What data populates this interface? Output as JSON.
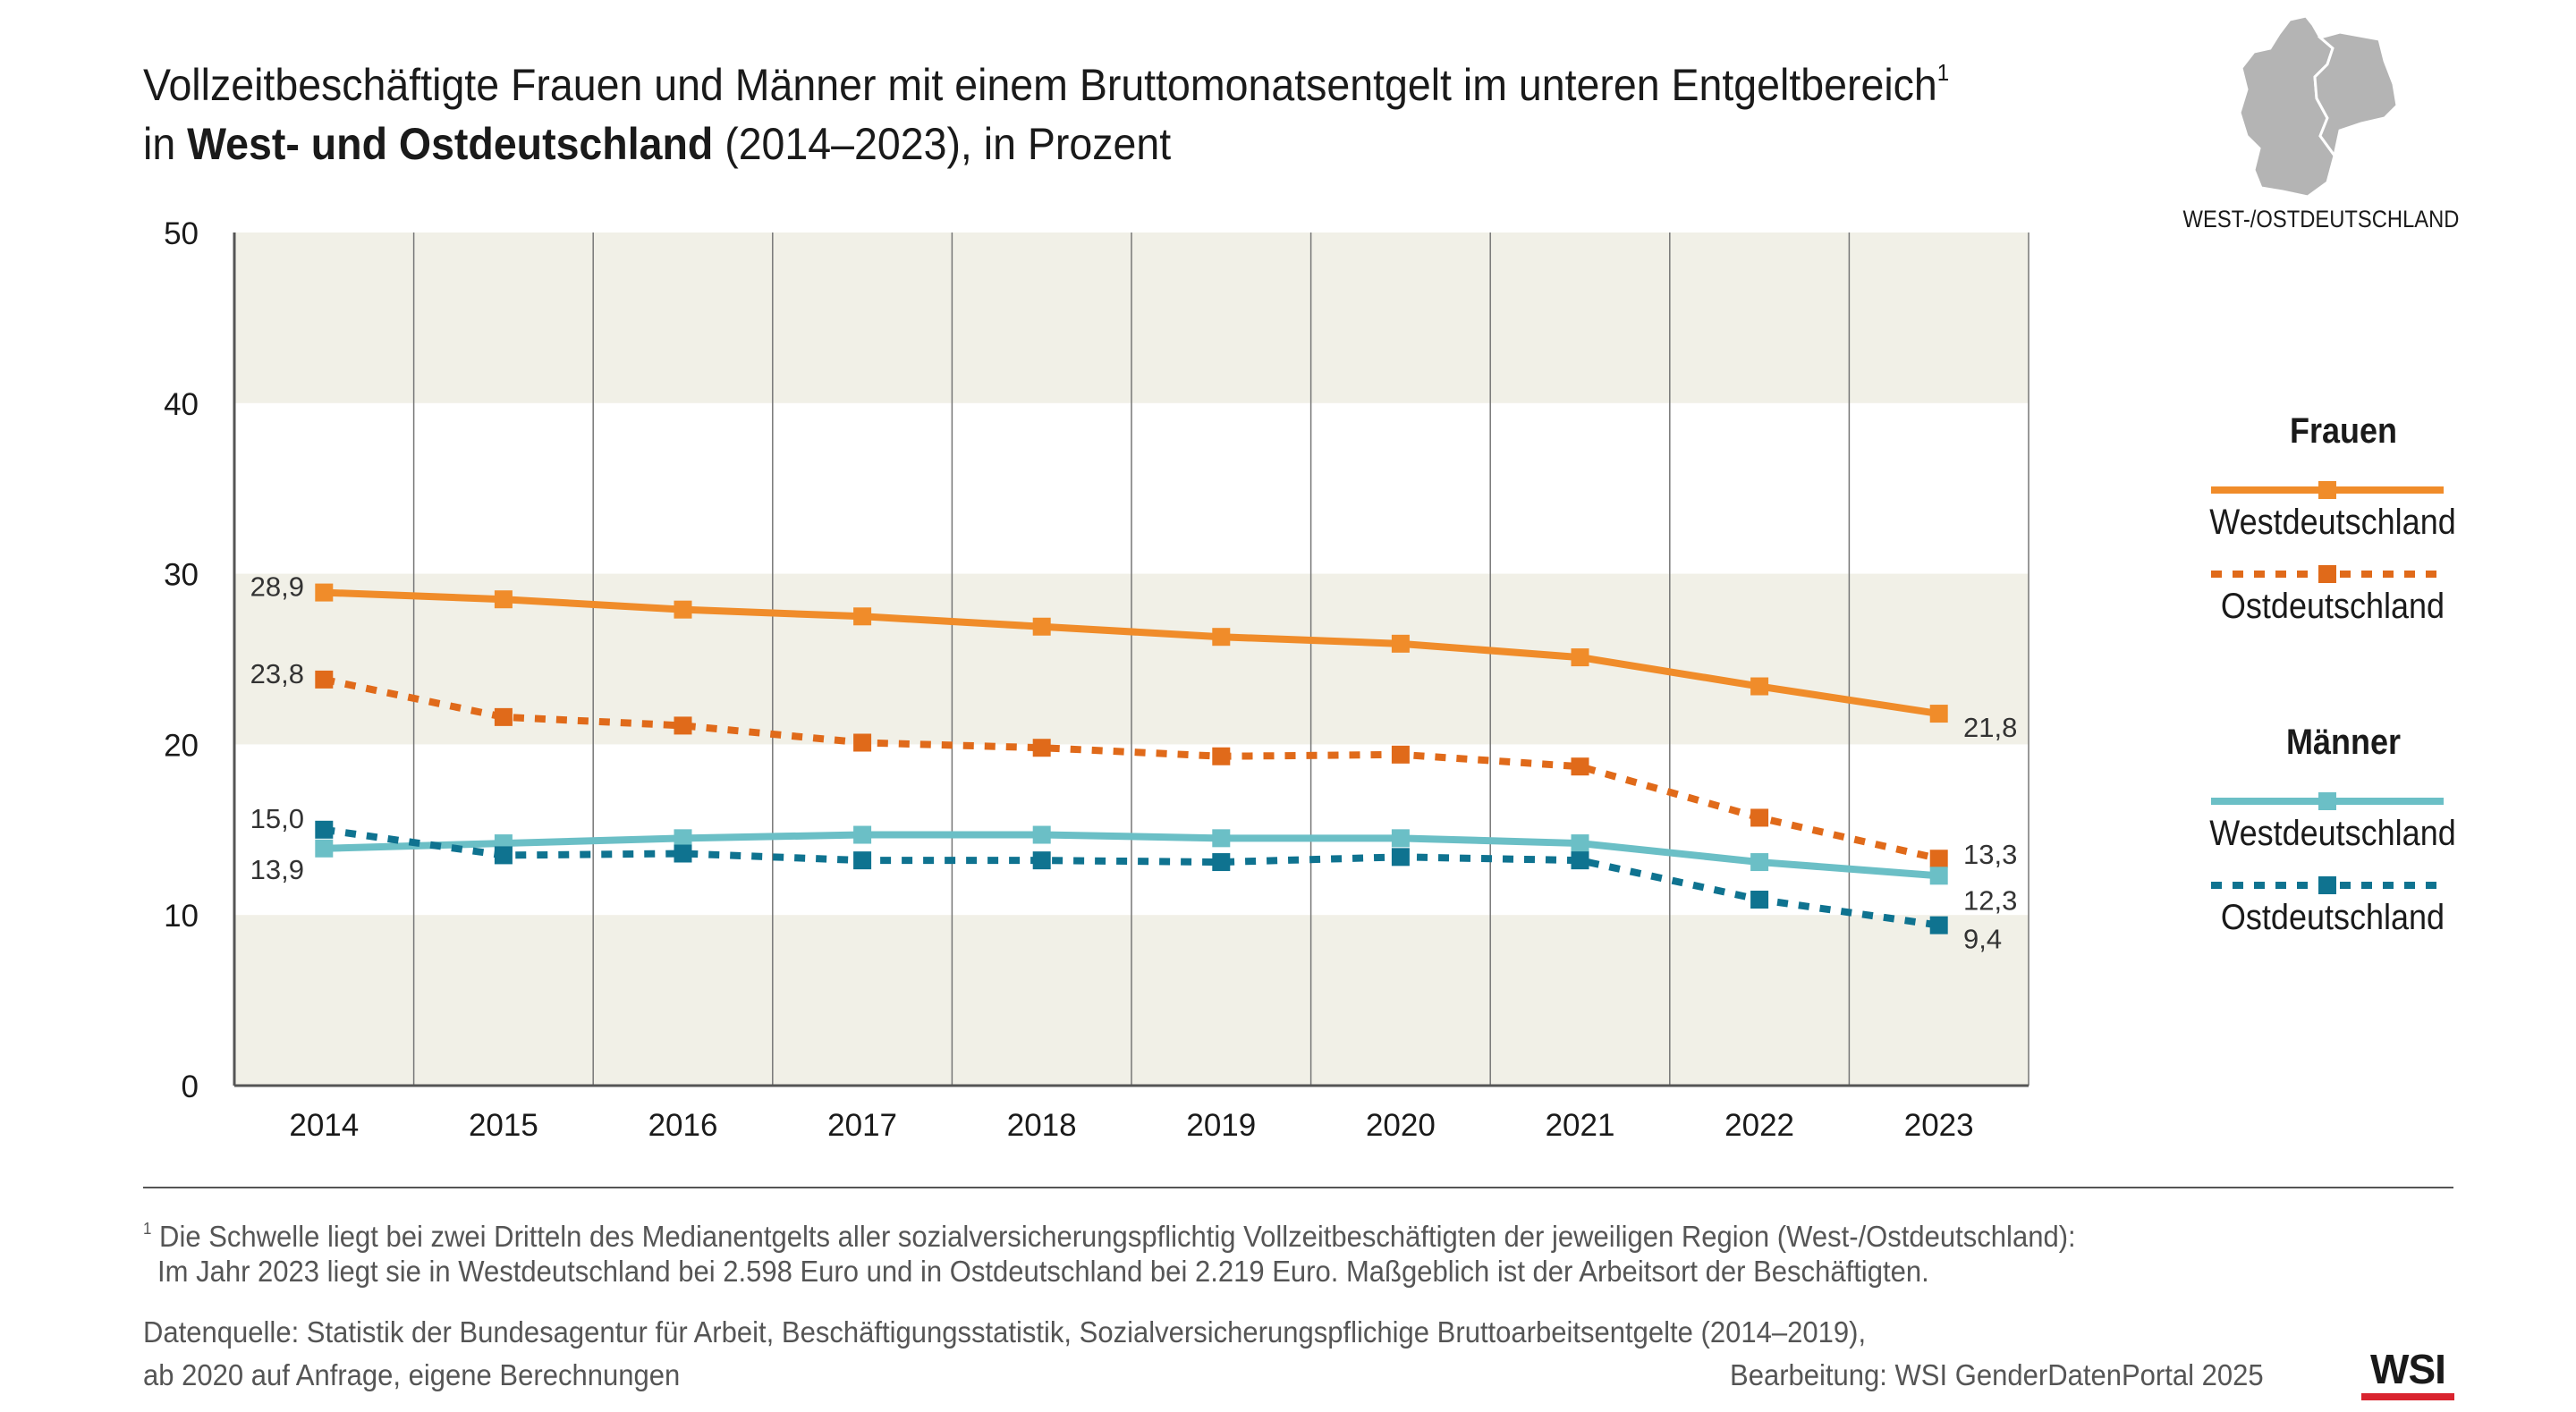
{
  "title": {
    "line1": "Vollzeitbeschäftigte Frauen und Männer mit einem Bruttomonatsentgelt im unteren Entgeltbereich",
    "footnote_mark": "1",
    "line2_prefix": "in ",
    "line2_bold": "West- und Ostdeutschland",
    "line2_suffix": " (2014–2023), in Prozent"
  },
  "map": {
    "label": "WEST-/OSTDEUTSCHLAND"
  },
  "legend": {
    "frauen": {
      "heading": "Frauen",
      "west": "Westdeutschland",
      "ost": "Ostdeutschland"
    },
    "maenner": {
      "heading": "Männer",
      "west": "Westdeutschland",
      "ost": "Ostdeutschland"
    }
  },
  "footnote": {
    "mark": "1",
    "line1": "Die Schwelle liegt bei zwei Dritteln des Medianentgelts aller sozialversicherungspflichtig Vollzeitbeschäftigten der jeweiligen Region (West-/Ostdeutschland):",
    "line2": "Im Jahr 2023 liegt sie in Westdeutschland bei 2.598 Euro und in Ostdeutschland bei 2.219 Euro. Maßgeblich ist der Arbeitsort der Beschäftigten."
  },
  "source": {
    "line1": "Datenquelle: Statistik der Bundesagentur für Arbeit, Beschäftigungsstatistik, Sozialversicherungspflichige Bruttoarbeitsentgelte (2014–2019),",
    "line2": "ab 2020 auf Anfrage, eigene Berechnungen"
  },
  "credit": "Bearbeitung: WSI GenderDatenPortal 2025",
  "logo": "WSI",
  "colors": {
    "frauen_west": "#f08c2a",
    "frauen_ost": "#e06a1a",
    "maenner_west": "#6bbfc6",
    "maenner_ost": "#0f7390",
    "band": "#f1f0e7",
    "axis": "#555555",
    "grid": "#777777",
    "map": "#b4b4b4",
    "logo_bar": "#d9232e"
  },
  "chart_data": {
    "type": "line",
    "title": "Vollzeitbeschäftigte Frauen und Männer mit einem Bruttomonatsentgelt im unteren Entgeltbereich in West- und Ostdeutschland (2014–2023), in Prozent",
    "categories": [
      "2014",
      "2015",
      "2016",
      "2017",
      "2018",
      "2019",
      "2020",
      "2021",
      "2022",
      "2023"
    ],
    "ylim": [
      0,
      50
    ],
    "yticks": [
      "0",
      "10",
      "20",
      "30",
      "40",
      "50"
    ],
    "series": [
      {
        "name": "Frauen Westdeutschland",
        "group": "Frauen",
        "style": "solid",
        "color_key": "frauen_west",
        "values": [
          28.9,
          28.5,
          27.9,
          27.5,
          26.9,
          26.3,
          25.9,
          25.1,
          23.4,
          21.8
        ],
        "start_label": "28,9",
        "end_label": "21,8"
      },
      {
        "name": "Frauen Ostdeutschland",
        "group": "Frauen",
        "style": "dashed",
        "color_key": "frauen_ost",
        "values": [
          23.8,
          21.6,
          21.1,
          20.1,
          19.8,
          19.3,
          19.4,
          18.7,
          15.7,
          13.3
        ],
        "start_label": "23,8",
        "end_label": "13,3"
      },
      {
        "name": "Männer Westdeutschland",
        "group": "Männer",
        "style": "solid",
        "color_key": "maenner_west",
        "values": [
          13.9,
          14.2,
          14.5,
          14.7,
          14.7,
          14.5,
          14.5,
          14.2,
          13.1,
          12.3
        ],
        "start_label": "13,9",
        "end_label": "12,3"
      },
      {
        "name": "Männer Ostdeutschland",
        "group": "Männer",
        "style": "dashed",
        "color_key": "maenner_ost",
        "values": [
          15.0,
          13.5,
          13.6,
          13.2,
          13.2,
          13.1,
          13.4,
          13.2,
          10.9,
          9.4
        ],
        "start_label": "15,0",
        "end_label": "9,4"
      }
    ]
  }
}
